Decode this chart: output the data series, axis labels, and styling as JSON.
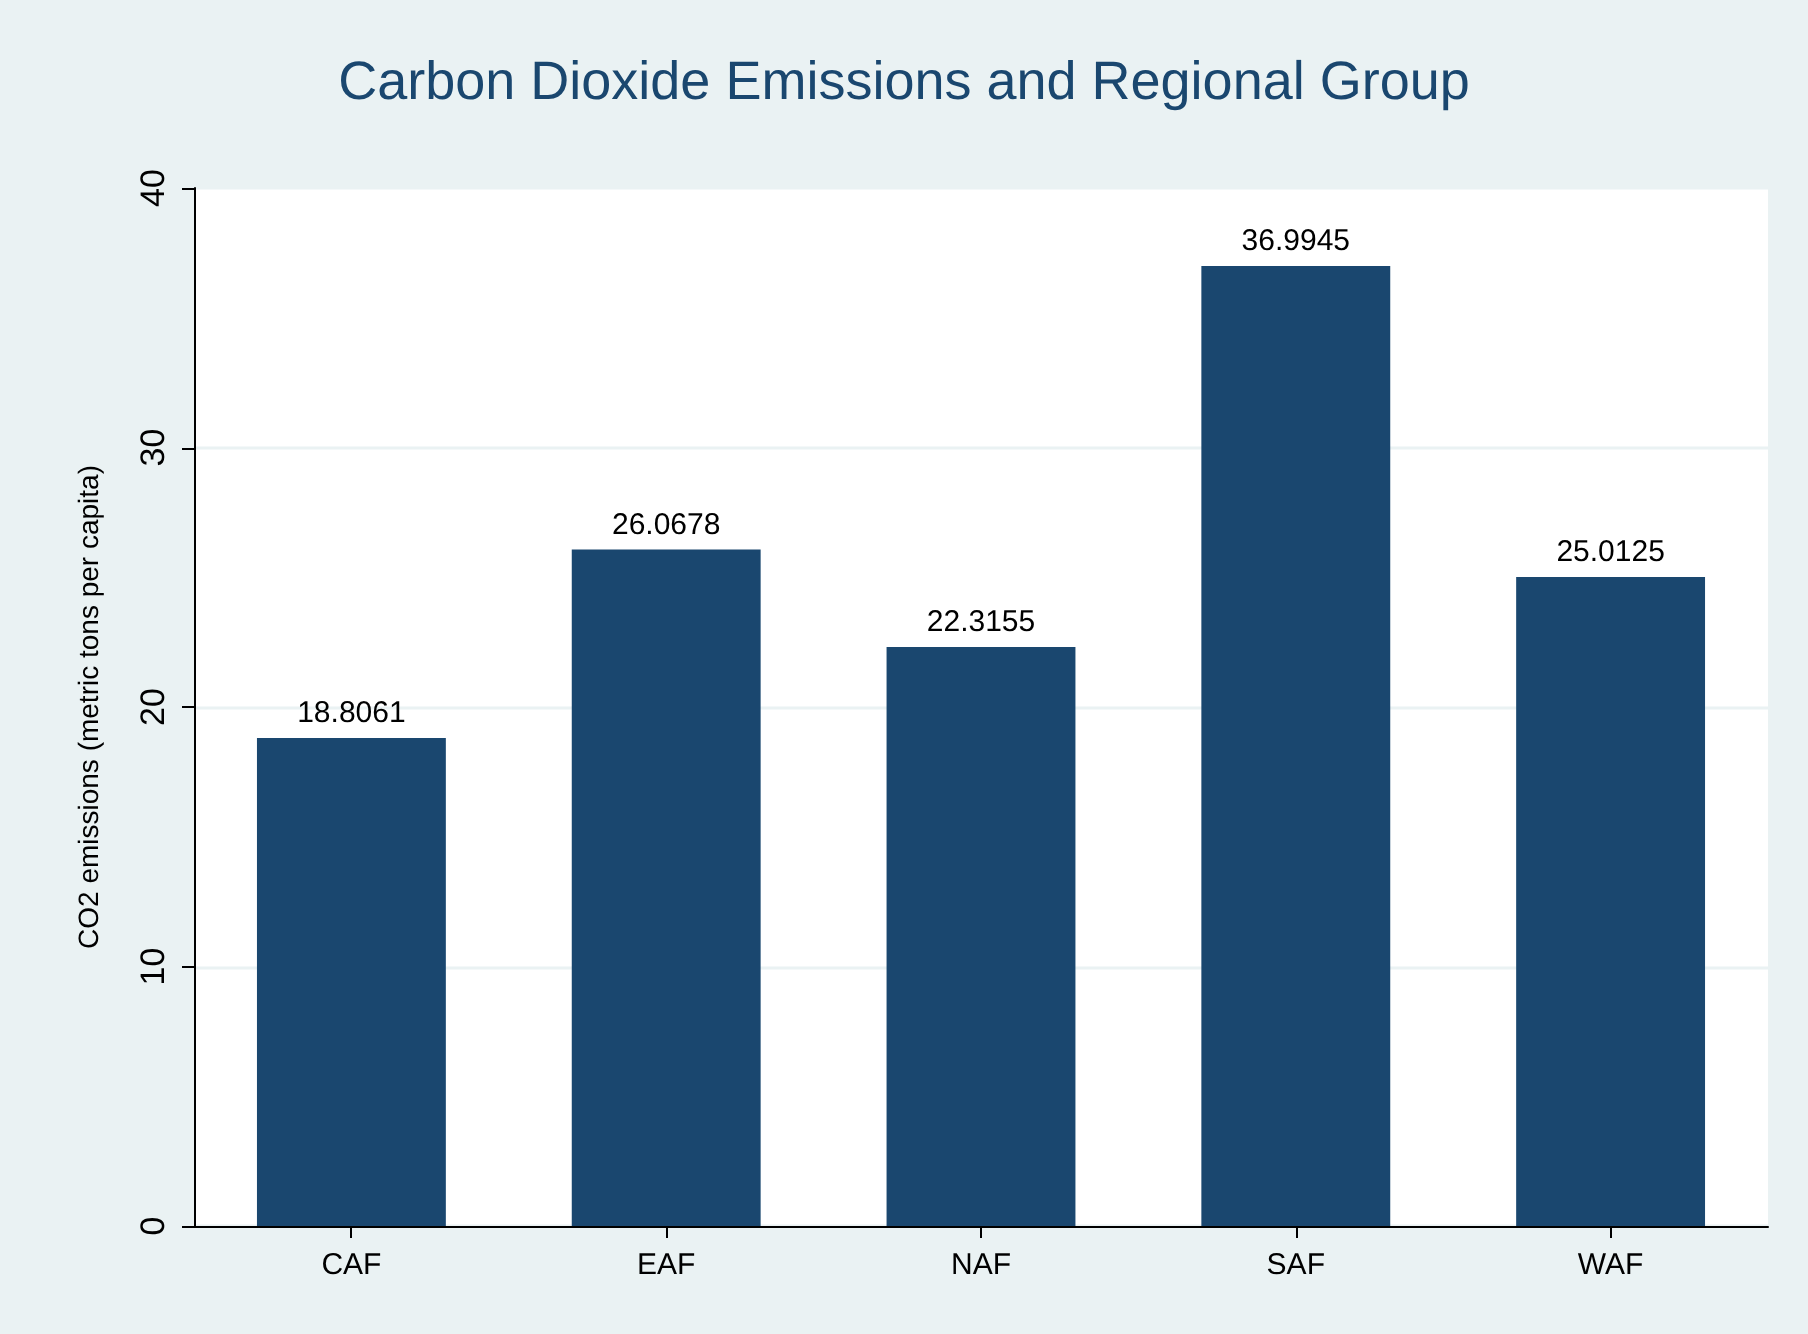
{
  "chart_data": {
    "type": "bar",
    "title": "Carbon Dioxide Emissions and Regional Group",
    "ylabel": "CO2 emissions (metric tons per capita)",
    "categories": [
      "CAF",
      "EAF",
      "NAF",
      "SAF",
      "WAF"
    ],
    "values": [
      18.8061,
      26.0678,
      22.3155,
      36.9945,
      25.0125
    ],
    "color": "#1a476f",
    "ylim": [
      0,
      40
    ],
    "yticks": [
      0,
      10,
      20,
      30,
      40
    ],
    "grid": "y",
    "data_labels": true
  }
}
